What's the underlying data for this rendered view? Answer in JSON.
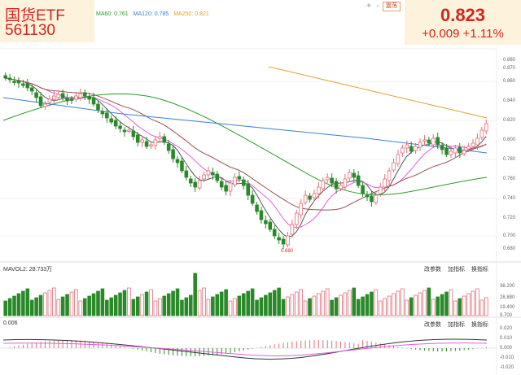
{
  "header": {
    "name": "国货ETF",
    "code": "561130",
    "ma_legend": [
      {
        "label": "MA60: 0.761",
        "color": "#2a9a2a"
      },
      {
        "label": "MA120: 0.785",
        "color": "#3a7fd0"
      },
      {
        "label": "MA250: 0.821",
        "color": "#e0a030"
      }
    ],
    "tag_label": "震荡",
    "zoom_in": "+",
    "zoom_out": "-"
  },
  "quote": {
    "price": "0.823",
    "change": "+0.009",
    "change_pct": "+1.11%"
  },
  "price_axis": [
    "0.880",
    "0.870",
    "0.860",
    "0.840",
    "0.820",
    "0.800",
    "0.780",
    "0.760",
    "0.740",
    "0.720",
    "0.700",
    "0.680"
  ],
  "low_marker": "0.680",
  "volume_panel": {
    "label": "MAVOL2: 28.733万",
    "buttons": [
      "改参数",
      "加指标",
      "换指标"
    ],
    "axis": [
      "38.200",
      "28.880",
      "19.400",
      "9.700"
    ]
  },
  "macd_panel": {
    "label": "0.006",
    "buttons": [
      "改参数",
      "加指标",
      "换指标"
    ],
    "axis": [
      "0.020",
      "0.010",
      "0.000",
      "-0.010",
      "-0.020"
    ]
  },
  "colors": {
    "up": "#e0707a",
    "down": "#2a8a2a",
    "ma5": "#555555",
    "ma10": "#e060e0",
    "ma20": "#9a5050",
    "ma60": "#2a9a2a",
    "ma120": "#3a7fd0",
    "ma250": "#e0a030"
  }
}
